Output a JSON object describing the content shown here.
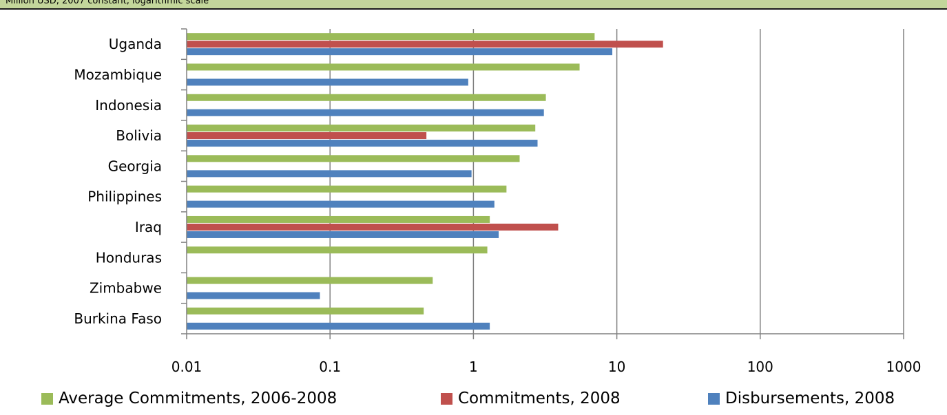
{
  "header": {
    "subtitle": "Million USD, 2007 constant, logarithmic scale"
  },
  "colors": {
    "average": "#9bbb59",
    "commitments": "#c0504d",
    "disbursements": "#4f81bd",
    "grid": "#808080",
    "axis": "#000000"
  },
  "chart_data": {
    "type": "bar",
    "orientation": "horizontal",
    "log_scale": true,
    "xlim": [
      0.01,
      1000
    ],
    "grid": true,
    "legend_position": "bottom",
    "xticks": [
      "0.01",
      "0.1",
      "1",
      "10",
      "100",
      "1000"
    ],
    "categories": [
      "Uganda",
      "Mozambique",
      "Indonesia",
      "Bolivia",
      "Georgia",
      "Philippines",
      "Iraq",
      "Honduras",
      "Zimbabwe",
      "Burkina Faso"
    ],
    "series": [
      {
        "name": "Average Commitments, 2006-2008",
        "values": [
          7.0,
          5.5,
          3.2,
          2.7,
          2.1,
          1.7,
          1.3,
          1.25,
          0.52,
          0.45
        ]
      },
      {
        "name": "Commitments, 2008",
        "values": [
          21,
          null,
          null,
          0.47,
          null,
          null,
          3.9,
          null,
          null,
          null
        ]
      },
      {
        "name": "Disbursements, 2008",
        "values": [
          9.3,
          0.92,
          3.1,
          2.8,
          0.97,
          1.4,
          1.5,
          null,
          0.085,
          1.3
        ]
      }
    ]
  }
}
